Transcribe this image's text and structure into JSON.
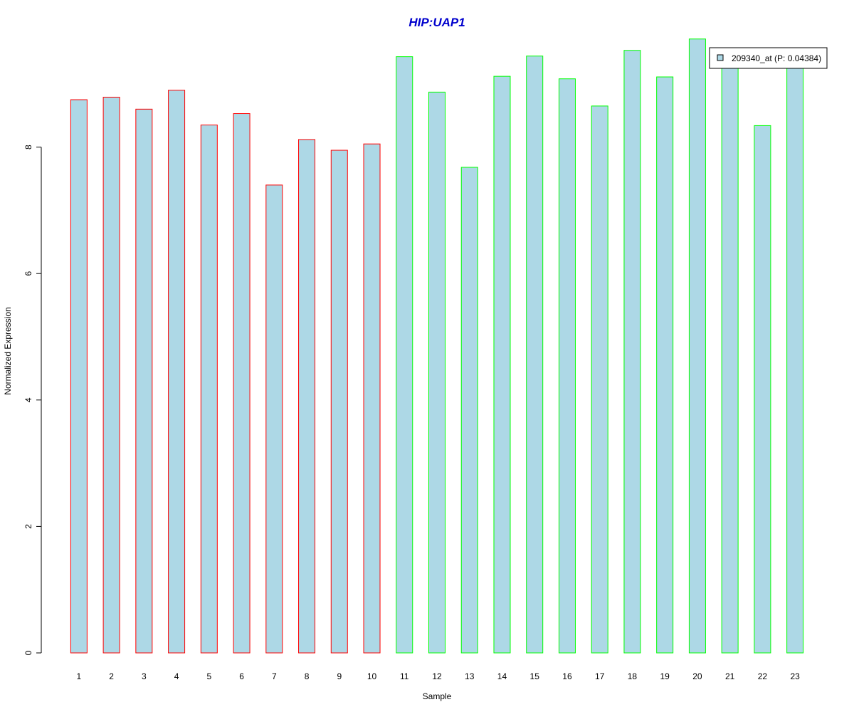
{
  "chart_data": {
    "type": "bar",
    "title": "HIP:UAP1",
    "xlabel": "Sample",
    "ylabel": "Normalized Expression",
    "categories": [
      "1",
      "2",
      "3",
      "4",
      "5",
      "6",
      "7",
      "8",
      "9",
      "10",
      "11",
      "12",
      "13",
      "14",
      "15",
      "16",
      "17",
      "18",
      "19",
      "20",
      "21",
      "22",
      "23"
    ],
    "values": [
      8.75,
      8.79,
      8.6,
      8.9,
      8.35,
      8.53,
      7.4,
      8.12,
      7.95,
      8.05,
      9.43,
      8.87,
      7.68,
      9.12,
      9.44,
      9.08,
      8.65,
      9.53,
      9.11,
      9.71,
      9.3,
      8.34,
      9.27
    ],
    "groups": [
      "red",
      "red",
      "red",
      "red",
      "red",
      "red",
      "red",
      "red",
      "red",
      "red",
      "green",
      "green",
      "green",
      "green",
      "green",
      "green",
      "green",
      "green",
      "green",
      "green",
      "green",
      "green",
      "green"
    ],
    "yticks": [
      0,
      2,
      4,
      6,
      8
    ],
    "ylim": [
      0,
      9.8
    ],
    "grid": false,
    "legend": {
      "entries": [
        "209340_at (P: 0.04384)"
      ],
      "position": "top-right"
    },
    "colors": {
      "bar_fill": "#add8e6",
      "group_red": "#ff0000",
      "group_green": "#00ff00",
      "title": "#0000cd",
      "axis": "#000000"
    }
  }
}
